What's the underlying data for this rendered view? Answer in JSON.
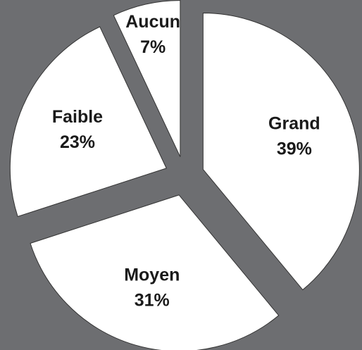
{
  "chart_data": {
    "type": "pie",
    "categories": [
      "Grand",
      "Moyen",
      "Faible",
      "Aucun"
    ],
    "values": [
      39,
      31,
      23,
      7
    ],
    "value_labels": [
      "39%",
      "31%",
      "23%",
      "7%"
    ],
    "color": "#ffffff",
    "exploded": true
  }
}
